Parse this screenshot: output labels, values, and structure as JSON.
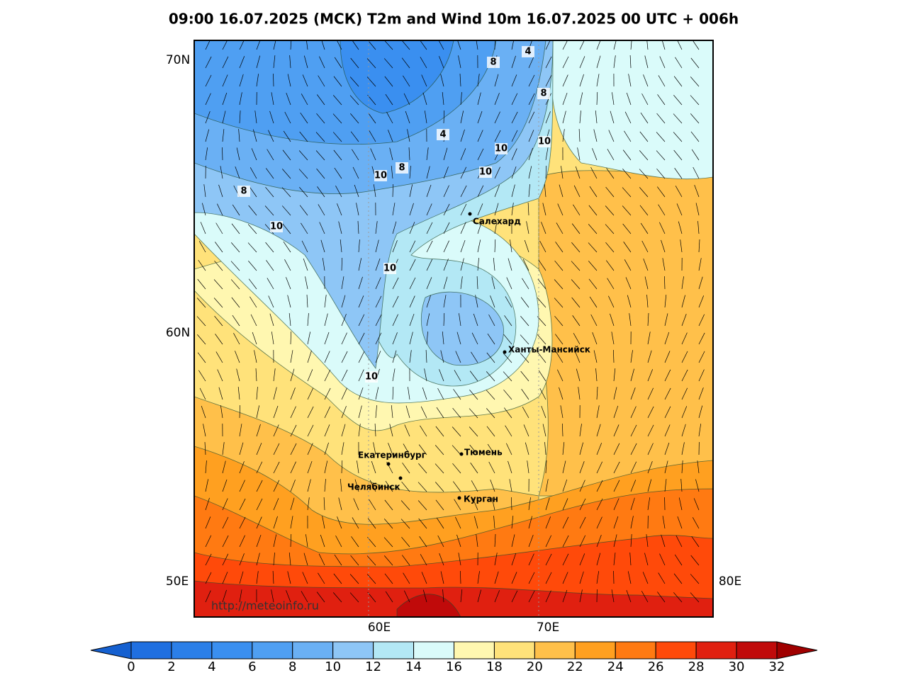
{
  "header": {
    "title": "09:00 16.07.2025 (МСК) T2m and Wind 10m 16.07.2025 00 UTC + 006h"
  },
  "map": {
    "lat_labels": [
      "70N",
      "60N"
    ],
    "lon_labels": [
      "50E",
      "60E",
      "70E",
      "80E"
    ],
    "cities": [
      "Салехард",
      "Ханты-Мансийск",
      "Екатеринбург",
      "Тюмень",
      "Челябинск",
      "Курган"
    ],
    "contour_labels": [
      4,
      8,
      8,
      4,
      10,
      10,
      10,
      8,
      10,
      8,
      10,
      10,
      10
    ],
    "watermark": "http://meteoinfo.ru"
  },
  "colorbar": {
    "ticks": [
      0,
      2,
      4,
      6,
      8,
      10,
      12,
      14,
      16,
      18,
      20,
      22,
      24,
      26,
      28,
      30,
      32
    ],
    "colors": [
      "#1f6fe0",
      "#2b7fe8",
      "#3a8ff0",
      "#4f9ff2",
      "#6ab0f4",
      "#8ec6f6",
      "#b3e8f5",
      "#dafbfa",
      "#fff7b0",
      "#ffe27a",
      "#ffc04a",
      "#ffa020",
      "#ff7a12",
      "#ff4a0a",
      "#e02010",
      "#c00a0a"
    ],
    "under_color": "#1560d0",
    "over_color": "#a00000"
  }
}
